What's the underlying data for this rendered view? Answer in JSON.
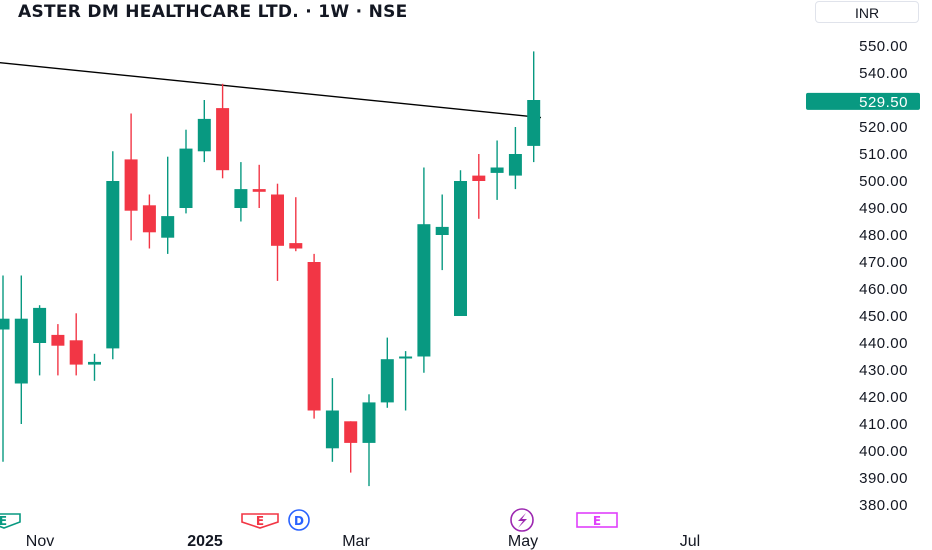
{
  "header": {
    "title": "ASTER DM HEALTHCARE LTD. · 1W · NSE",
    "currency": "INR"
  },
  "colors": {
    "up": "#089981",
    "down": "#f23645",
    "trendline": "#000000",
    "earnings": "#f23645",
    "dividend": "#2962ff",
    "split": "#9c27b0",
    "upcoming_earnings": "#e040fb"
  },
  "price_axis": {
    "labels": [
      "550.00",
      "540.00",
      "530.00",
      "520.00",
      "510.00",
      "500.00",
      "490.00",
      "480.00",
      "470.00",
      "460.00",
      "450.00",
      "440.00",
      "430.00",
      "420.00",
      "410.00",
      "400.00",
      "390.00",
      "380.00"
    ],
    "last_price": "529.50"
  },
  "time_axis": {
    "labels": [
      "Nov",
      "2025",
      "Mar",
      "May",
      "Jul"
    ]
  },
  "events": {
    "first": "E",
    "earnings": "E",
    "dividend": "D",
    "split_icon": "lightning-icon",
    "upcoming": "E"
  },
  "chart_data": {
    "type": "candlestick",
    "title": "ASTER DM HEALTHCARE LTD. · 1W · NSE",
    "timeframe": "1W",
    "currency": "INR",
    "ylim": [
      376,
      556
    ],
    "last_price": 529.5,
    "trendline": {
      "from": {
        "x": "Oct 2024",
        "y": 544
      },
      "to": {
        "x": "May 2025",
        "y": 523.5
      }
    },
    "candles": [
      {
        "o": 445,
        "h": 465,
        "l": 396,
        "c": 449
      },
      {
        "o": 425,
        "h": 465,
        "l": 410,
        "c": 449
      },
      {
        "o": 440,
        "h": 454,
        "l": 428,
        "c": 453
      },
      {
        "o": 443,
        "h": 447,
        "l": 428,
        "c": 439
      },
      {
        "o": 441,
        "h": 451,
        "l": 428,
        "c": 432
      },
      {
        "o": 432,
        "h": 436,
        "l": 426,
        "c": 433
      },
      {
        "o": 438,
        "h": 511,
        "l": 434,
        "c": 500
      },
      {
        "o": 508,
        "h": 525,
        "l": 478,
        "c": 489
      },
      {
        "o": 491,
        "h": 495,
        "l": 475,
        "c": 481
      },
      {
        "o": 479,
        "h": 509,
        "l": 473,
        "c": 487
      },
      {
        "o": 490,
        "h": 519,
        "l": 488,
        "c": 512
      },
      {
        "o": 511,
        "h": 530,
        "l": 507,
        "c": 523
      },
      {
        "o": 527,
        "h": 536,
        "l": 501,
        "c": 504
      },
      {
        "o": 490,
        "h": 507,
        "l": 485,
        "c": 497
      },
      {
        "o": 497,
        "h": 506,
        "l": 490,
        "c": 496
      },
      {
        "o": 495,
        "h": 499,
        "l": 463,
        "c": 476
      },
      {
        "o": 477,
        "h": 494,
        "l": 474,
        "c": 475
      },
      {
        "o": 470,
        "h": 473,
        "l": 412,
        "c": 415
      },
      {
        "o": 401,
        "h": 427,
        "l": 396,
        "c": 415
      },
      {
        "o": 411,
        "h": 411,
        "l": 392,
        "c": 403
      },
      {
        "o": 403,
        "h": 421,
        "l": 387,
        "c": 418
      },
      {
        "o": 418,
        "h": 442,
        "l": 416,
        "c": 434
      },
      {
        "o": 435,
        "h": 437,
        "l": 415,
        "c": 435
      },
      {
        "o": 435,
        "h": 505,
        "l": 429,
        "c": 484
      },
      {
        "o": 480,
        "h": 495,
        "l": 467,
        "c": 483
      },
      {
        "o": 450,
        "h": 504,
        "l": 450,
        "c": 500
      },
      {
        "o": 502,
        "h": 510,
        "l": 486,
        "c": 500
      },
      {
        "o": 503,
        "h": 515,
        "l": 493,
        "c": 505
      },
      {
        "o": 502,
        "h": 520,
        "l": 497,
        "c": 510
      },
      {
        "o": 513,
        "h": 548,
        "l": 507,
        "c": 530
      }
    ]
  }
}
